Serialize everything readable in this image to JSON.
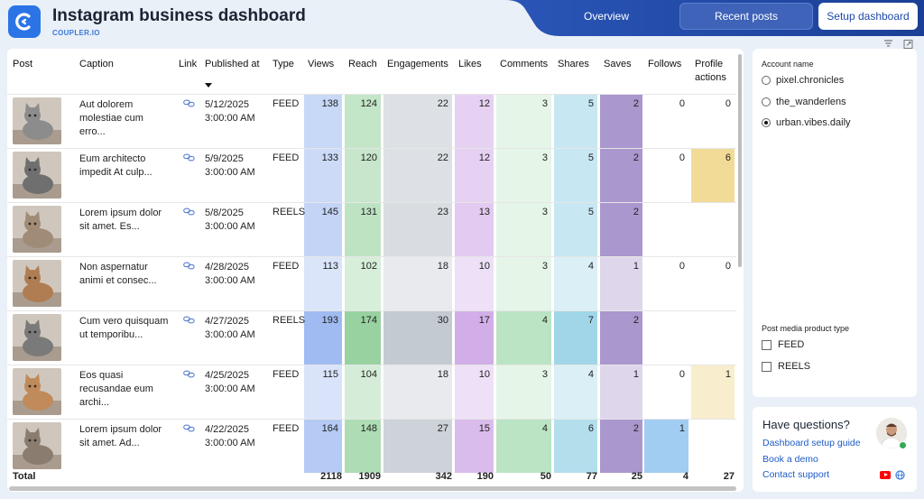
{
  "header": {
    "title": "Instagram business dashboard",
    "brand": "COUPLER.IO",
    "nav": {
      "overview": "Overview",
      "recent": "Recent posts",
      "setup": "Setup dashboard"
    },
    "brand_color": "#1e4aa8"
  },
  "table": {
    "columns": {
      "post": "Post",
      "caption": "Caption",
      "link": "Link",
      "published": "Published at",
      "type": "Type",
      "views": "Views",
      "reach": "Reach",
      "engagements": "Engagements",
      "likes": "Likes",
      "comments": "Comments",
      "shares": "Shares",
      "saves": "Saves",
      "follows": "Follows",
      "profile_actions_1": "Profile",
      "profile_actions_2": "actions"
    },
    "rows": [
      {
        "cap1": "Aut dolorem",
        "cap2": "molestiae cum",
        "cap3": "erro...",
        "date": "5/12/2025",
        "time": "3:00:00 AM",
        "type": "FEED",
        "views": "138",
        "reach": "124",
        "eng": "22",
        "likes": "12",
        "comments": "3",
        "shares": "5",
        "saves": "2",
        "follows": "0",
        "profile": "0"
      },
      {
        "cap1": "Eum architecto",
        "cap2": "impedit At culp...",
        "cap3": "",
        "date": "5/9/2025",
        "time": "3:00:00 AM",
        "type": "FEED",
        "views": "133",
        "reach": "120",
        "eng": "22",
        "likes": "12",
        "comments": "3",
        "shares": "5",
        "saves": "2",
        "follows": "0",
        "profile": "6"
      },
      {
        "cap1": "Lorem ipsum dolor",
        "cap2": "sit amet. Es...",
        "cap3": "",
        "date": "5/8/2025",
        "time": "3:00:00 AM",
        "type": "REELS",
        "views": "145",
        "reach": "131",
        "eng": "23",
        "likes": "13",
        "comments": "3",
        "shares": "5",
        "saves": "2",
        "follows": "",
        "profile": ""
      },
      {
        "cap1": "Non aspernatur",
        "cap2": "animi et consec...",
        "cap3": "",
        "date": "4/28/2025",
        "time": "3:00:00 AM",
        "type": "FEED",
        "views": "113",
        "reach": "102",
        "eng": "18",
        "likes": "10",
        "comments": "3",
        "shares": "4",
        "saves": "1",
        "follows": "0",
        "profile": "0"
      },
      {
        "cap1": "Cum vero quisquam",
        "cap2": "ut temporibu...",
        "cap3": "",
        "date": "4/27/2025",
        "time": "3:00:00 AM",
        "type": "REELS",
        "views": "193",
        "reach": "174",
        "eng": "30",
        "likes": "17",
        "comments": "4",
        "shares": "7",
        "saves": "2",
        "follows": "",
        "profile": ""
      },
      {
        "cap1": "Eos quasi",
        "cap2": "recusandae eum",
        "cap3": "archi...",
        "date": "4/25/2025",
        "time": "3:00:00 AM",
        "type": "FEED",
        "views": "115",
        "reach": "104",
        "eng": "18",
        "likes": "10",
        "comments": "3",
        "shares": "4",
        "saves": "1",
        "follows": "0",
        "profile": "1"
      },
      {
        "cap1": "Lorem ipsum dolor",
        "cap2": "sit amet. Ad...",
        "cap3": "",
        "date": "4/22/2025",
        "time": "3:00:00 AM",
        "type": "FEED",
        "views": "164",
        "reach": "148",
        "eng": "27",
        "likes": "15",
        "comments": "4",
        "shares": "6",
        "saves": "2",
        "follows": "1",
        "profile": ""
      }
    ],
    "totals": {
      "label": "Total",
      "views": "2118",
      "reach": "1909",
      "eng": "342",
      "likes": "190",
      "comments": "50",
      "shares": "77",
      "saves": "25",
      "follows": "4",
      "profile": "27"
    }
  },
  "filters": {
    "account_label": "Account name",
    "accounts": [
      "pixel.chronicles",
      "the_wanderlens",
      "urban.vibes.daily"
    ],
    "selected_account": "urban.vibes.daily",
    "media_label": "Post media product type",
    "media_types": [
      "FEED",
      "REELS"
    ]
  },
  "help": {
    "title": "Have questions?",
    "links": [
      "Dashboard setup guide",
      "Book a demo",
      "Contact support"
    ]
  }
}
